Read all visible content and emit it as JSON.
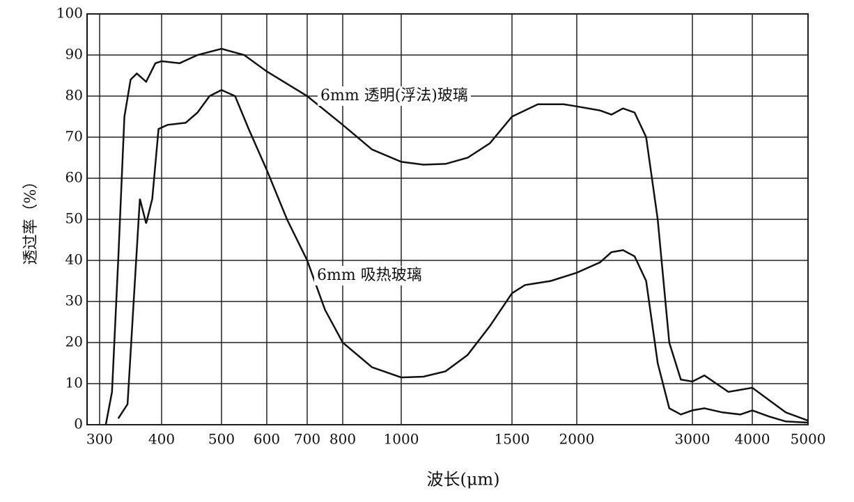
{
  "chart_data": {
    "type": "line",
    "xlabel": "波长(μm)",
    "ylabel": "透过率（%）",
    "xlim": [
      280,
      5000
    ],
    "xticks": [
      300,
      400,
      500,
      600,
      700,
      800,
      1000,
      1500,
      2000,
      3000,
      4000,
      5000
    ],
    "ylim": [
      0,
      100
    ],
    "yticks": [
      0,
      10,
      20,
      30,
      40,
      50,
      60,
      70,
      80,
      90,
      100
    ],
    "grid": true,
    "series": [
      {
        "name": "6mm 透明(浮法)玻璃",
        "color": "#111111",
        "x": [
          310,
          320,
          330,
          340,
          350,
          360,
          375,
          390,
          400,
          430,
          460,
          500,
          550,
          600,
          700,
          800,
          900,
          1000,
          1100,
          1200,
          1300,
          1400,
          1500,
          1700,
          1900,
          2000,
          2200,
          2300,
          2400,
          2500,
          2600,
          2700,
          2800,
          2900,
          3000,
          3200,
          3400,
          3600,
          3800,
          4000,
          4300,
          4600,
          5000
        ],
        "values": [
          0,
          8,
          40,
          75,
          84,
          85.5,
          83.5,
          88,
          88.5,
          88,
          90,
          91.5,
          90,
          86,
          80,
          73,
          67,
          64,
          63.3,
          63.5,
          65,
          68.5,
          75,
          78,
          78,
          77.5,
          76.5,
          75.5,
          77,
          76,
          70,
          50,
          20,
          11,
          10.5,
          12,
          10,
          8,
          8.5,
          9,
          6,
          3,
          1
        ]
      },
      {
        "name": "6mm 吸热玻璃",
        "color": "#111111",
        "x": [
          330,
          345,
          355,
          365,
          375,
          385,
          395,
          410,
          440,
          460,
          480,
          500,
          530,
          560,
          600,
          650,
          700,
          750,
          800,
          900,
          1000,
          1100,
          1200,
          1300,
          1400,
          1500,
          1600,
          1800,
          2000,
          2200,
          2300,
          2400,
          2500,
          2600,
          2700,
          2800,
          2900,
          3000,
          3200,
          3500,
          3800,
          4000,
          4300,
          4600,
          5000
        ],
        "values": [
          1.5,
          5,
          30,
          55,
          49,
          55,
          72,
          73,
          73.5,
          76,
          80,
          81.5,
          80,
          72,
          62,
          50,
          40,
          28,
          20,
          14,
          11.5,
          11.7,
          13,
          17,
          24,
          32,
          34,
          35,
          37,
          39.5,
          42,
          42.5,
          41,
          35,
          15,
          4,
          2.5,
          3.5,
          4,
          3,
          2.5,
          3.5,
          2,
          0.8,
          0.5
        ]
      }
    ]
  }
}
